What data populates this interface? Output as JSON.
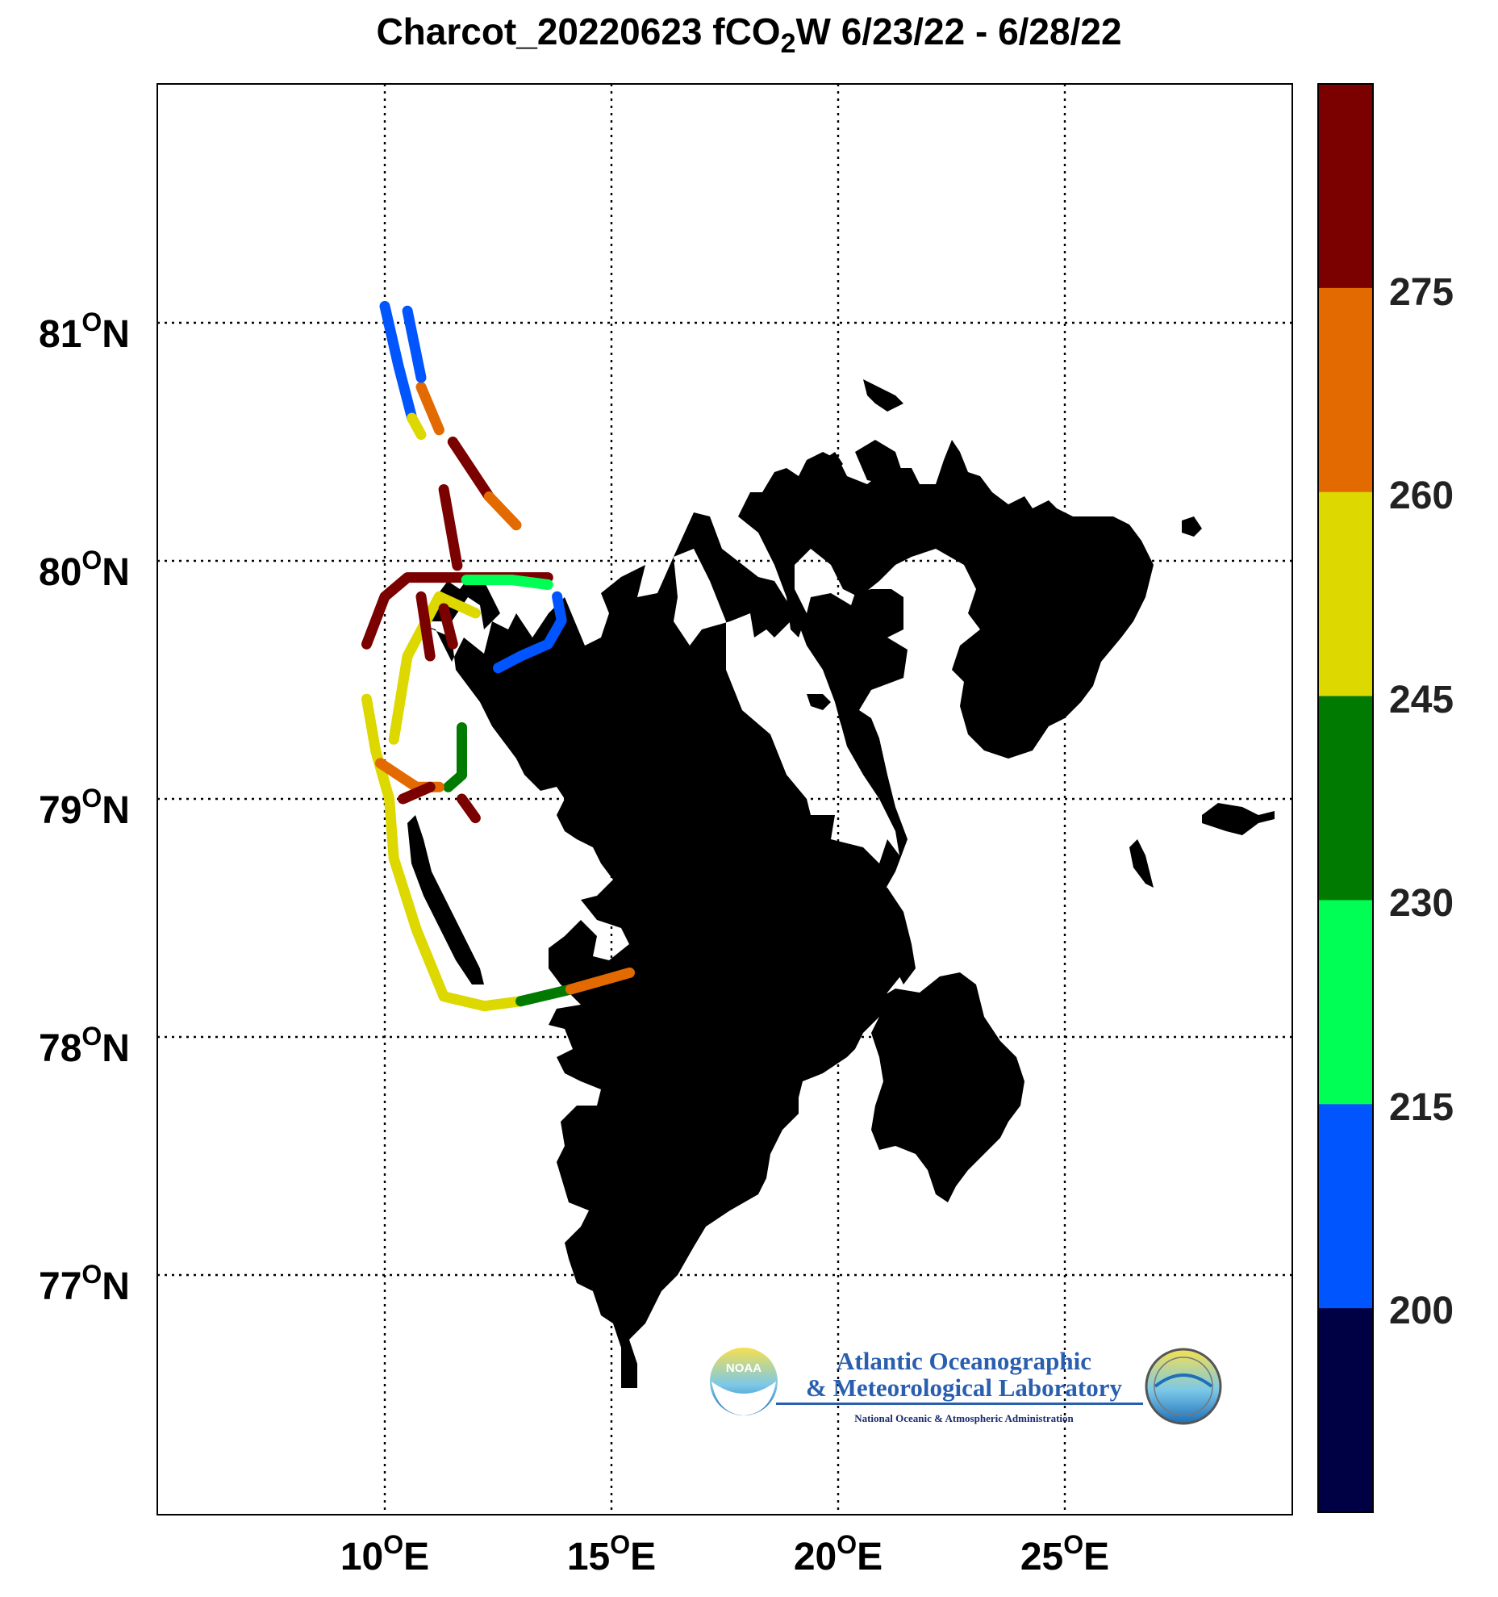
{
  "title": {
    "prefix": "Charcot_20220623 fCO",
    "subscript": "2",
    "suffix": "W 6/23/22 - 6/28/22"
  },
  "axes": {
    "lat_labels": [
      "81",
      "80",
      "79",
      "78",
      "77"
    ],
    "lat_suffix": "N",
    "lon_labels": [
      "10",
      "15",
      "20",
      "25"
    ],
    "lon_suffix": "E",
    "degree_symbol": "O",
    "grid": "dotted"
  },
  "colorbar": {
    "tick_labels": [
      "275",
      "260",
      "245",
      "230",
      "215",
      "200"
    ],
    "colors": [
      "#7b0000",
      "#e36a00",
      "#dcd800",
      "#007a00",
      "#00ff55",
      "#0055ff",
      "#000044"
    ]
  },
  "colors": {
    "land": "#bf6400",
    "frame": "#000000",
    "background": "#ffffff"
  },
  "logo": {
    "line1": "Atlantic Oceanographic",
    "line2": "& Meteorological Laboratory",
    "line3": "National Oceanic & Atmospheric Administration",
    "emblem_text": "NOAA"
  },
  "chart_data": {
    "type": "scatter",
    "title": "Charcot_20220623 fCO2W 6/23/22 - 6/28/22",
    "xlabel": "",
    "ylabel": "",
    "xlim": [
      5,
      30
    ],
    "ylim": [
      76,
      82
    ],
    "colorbar_range": [
      185,
      290
    ],
    "colorbar_ticks": [
      200,
      215,
      230,
      245,
      260,
      275
    ],
    "region": "Svalbard",
    "track_segments": [
      {
        "value": 280,
        "points": [
          [
            9.6,
            79.65
          ],
          [
            10.0,
            79.85
          ],
          [
            10.5,
            79.93
          ],
          [
            11.6,
            79.93
          ],
          [
            12.8,
            79.93
          ],
          [
            13.6,
            79.93
          ]
        ]
      },
      {
        "value": 280,
        "points": [
          [
            11.3,
            80.3
          ],
          [
            11.6,
            79.98
          ]
        ]
      },
      {
        "value": 280,
        "points": [
          [
            11.5,
            80.5
          ],
          [
            12.3,
            80.27
          ]
        ]
      },
      {
        "value": 270,
        "points": [
          [
            10.8,
            80.73
          ],
          [
            11.2,
            80.55
          ]
        ]
      },
      {
        "value": 270,
        "points": [
          [
            12.3,
            80.27
          ],
          [
            12.9,
            80.15
          ]
        ]
      },
      {
        "value": 200,
        "points": [
          [
            10.0,
            81.07
          ],
          [
            10.3,
            80.82
          ],
          [
            10.6,
            80.6
          ]
        ]
      },
      {
        "value": 205,
        "points": [
          [
            10.5,
            81.05
          ],
          [
            10.8,
            80.77
          ]
        ]
      },
      {
        "value": 255,
        "points": [
          [
            10.6,
            80.6
          ],
          [
            10.8,
            80.53
          ]
        ]
      },
      {
        "value": 225,
        "points": [
          [
            11.8,
            79.92
          ],
          [
            12.8,
            79.92
          ],
          [
            13.6,
            79.9
          ]
        ]
      },
      {
        "value": 212,
        "points": [
          [
            13.8,
            79.85
          ],
          [
            13.9,
            79.75
          ],
          [
            13.6,
            79.65
          ],
          [
            13.0,
            79.6
          ],
          [
            12.5,
            79.55
          ]
        ]
      },
      {
        "value": 255,
        "points": [
          [
            9.6,
            79.42
          ],
          [
            9.8,
            79.2
          ],
          [
            10.1,
            79.0
          ],
          [
            10.2,
            78.75
          ],
          [
            10.7,
            78.45
          ],
          [
            11.3,
            78.17
          ],
          [
            12.2,
            78.13
          ],
          [
            13.0,
            78.15
          ]
        ]
      },
      {
        "value": 240,
        "points": [
          [
            13.0,
            78.15
          ],
          [
            14.1,
            78.2
          ]
        ]
      },
      {
        "value": 262,
        "points": [
          [
            14.1,
            78.2
          ],
          [
            15.4,
            78.27
          ]
        ]
      },
      {
        "value": 255,
        "points": [
          [
            10.2,
            79.25
          ],
          [
            10.5,
            79.6
          ],
          [
            11.2,
            79.85
          ],
          [
            12.0,
            79.78
          ]
        ]
      },
      {
        "value": 240,
        "points": [
          [
            11.7,
            79.3
          ],
          [
            11.7,
            79.1
          ],
          [
            11.4,
            79.05
          ]
        ]
      },
      {
        "value": 268,
        "points": [
          [
            9.9,
            79.15
          ],
          [
            10.7,
            79.05
          ],
          [
            11.2,
            79.05
          ]
        ]
      },
      {
        "value": 280,
        "points": [
          [
            10.4,
            79.0
          ],
          [
            11.0,
            79.05
          ]
        ]
      },
      {
        "value": 280,
        "points": [
          [
            11.7,
            79.0
          ],
          [
            12.0,
            78.92
          ]
        ]
      },
      {
        "value": 280,
        "points": [
          [
            10.8,
            79.85
          ],
          [
            11.0,
            79.6
          ]
        ]
      },
      {
        "value": 280,
        "points": [
          [
            11.3,
            79.8
          ],
          [
            11.5,
            79.65
          ]
        ]
      }
    ]
  }
}
